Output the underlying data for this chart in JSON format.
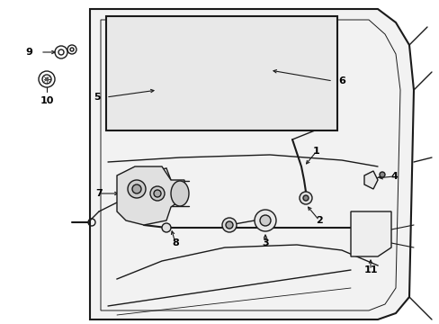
{
  "bg_color": "#ffffff",
  "line_color": "#1a1a1a",
  "fig_width": 4.89,
  "fig_height": 3.6,
  "dpi": 100,
  "window_fill": "#e8e8e8",
  "door_fill": "#f5f5f5"
}
